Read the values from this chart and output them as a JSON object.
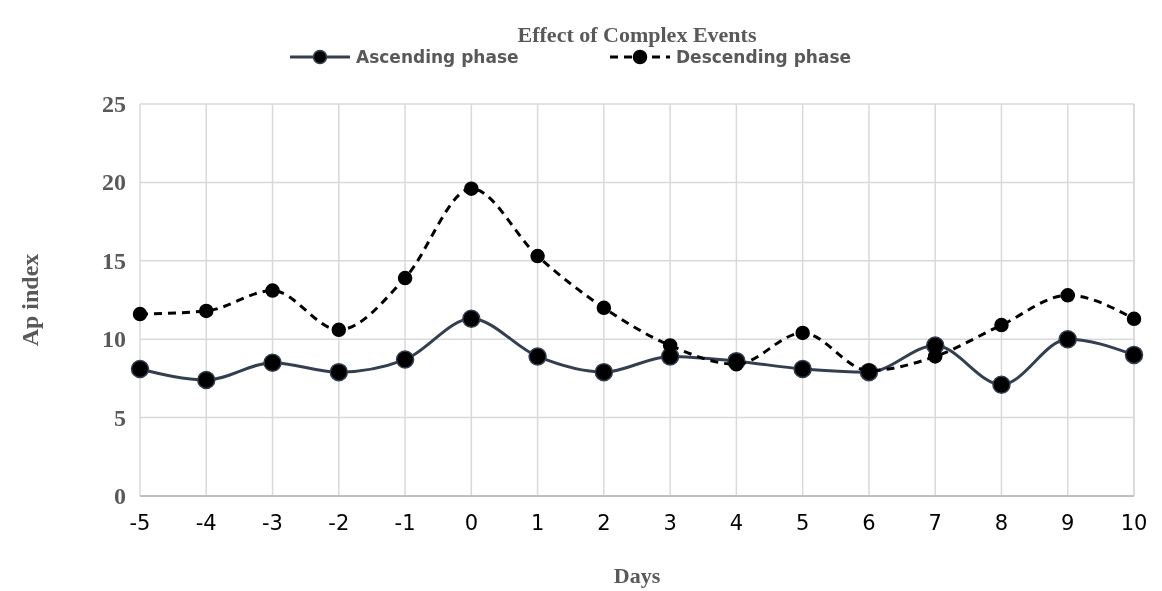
{
  "chart_data": {
    "type": "line",
    "title": "Effect of Complex Events",
    "xlabel": "Days",
    "ylabel": "Ap index",
    "categories": [
      "-5",
      "-4",
      "-3",
      "-2",
      "-1",
      "0",
      "1",
      "2",
      "3",
      "4",
      "5",
      "6",
      "7",
      "8",
      "9",
      "10"
    ],
    "series": [
      {
        "name": "Ascending phase",
        "color": "#333f50",
        "line_style": "solid",
        "values": [
          8.1,
          7.4,
          8.5,
          7.9,
          8.7,
          11.3,
          8.9,
          7.9,
          8.9,
          8.6,
          8.1,
          7.9,
          9.6,
          7.1,
          10.0,
          9.0
        ]
      },
      {
        "name": "Descending phase",
        "color": "#000000",
        "line_style": "dashed",
        "values": [
          11.6,
          11.8,
          13.1,
          10.6,
          13.9,
          19.6,
          15.3,
          12.0,
          9.6,
          8.4,
          10.4,
          8.0,
          8.9,
          10.9,
          12.8,
          11.3
        ]
      }
    ],
    "ylim": [
      0,
      25
    ],
    "yticks": [
      0,
      5,
      10,
      15,
      20,
      25
    ],
    "grid": true,
    "legend": "top",
    "marker": "circle"
  }
}
